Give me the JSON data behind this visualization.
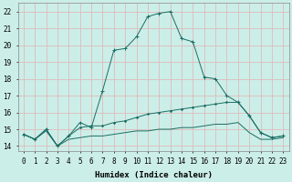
{
  "xlabel": "Humidex (Indice chaleur)",
  "bg_color": "#cceee8",
  "grid_color": "#ddbbbb",
  "line_color": "#1a6e64",
  "xlim": [
    -0.5,
    23.5
  ],
  "ylim": [
    13.7,
    22.5
  ],
  "xticks": [
    0,
    1,
    2,
    3,
    4,
    5,
    6,
    7,
    8,
    9,
    10,
    11,
    12,
    13,
    14,
    15,
    16,
    17,
    18,
    19,
    20,
    21,
    22,
    23
  ],
  "yticks": [
    14,
    15,
    16,
    17,
    18,
    19,
    20,
    21,
    22
  ],
  "line1_x": [
    0,
    1,
    2,
    3,
    4,
    5,
    6,
    7,
    8,
    9,
    10,
    11,
    12,
    13,
    14,
    15,
    16,
    17,
    18,
    19,
    20,
    21,
    22,
    23
  ],
  "line1_y": [
    14.7,
    14.4,
    15.0,
    14.0,
    14.6,
    15.4,
    15.1,
    17.3,
    19.7,
    19.8,
    20.5,
    21.7,
    21.9,
    22.0,
    20.4,
    20.2,
    18.1,
    18.0,
    17.0,
    16.6,
    15.8,
    14.8,
    14.5,
    14.6
  ],
  "line1_markers_x": [
    0,
    1,
    2,
    3,
    4,
    5,
    6,
    7,
    8,
    9,
    10,
    11,
    12,
    13,
    14,
    15,
    16,
    17,
    18,
    19,
    20,
    21,
    22,
    23
  ],
  "line1_markers_y": [
    14.7,
    14.4,
    15.0,
    14.0,
    14.6,
    15.4,
    15.1,
    17.3,
    19.7,
    19.8,
    20.5,
    21.7,
    21.9,
    22.0,
    20.4,
    20.2,
    18.1,
    18.0,
    17.0,
    16.6,
    15.8,
    14.8,
    14.5,
    14.6
  ],
  "line2_x": [
    0,
    1,
    2,
    3,
    4,
    5,
    6,
    7,
    8,
    9,
    10,
    11,
    12,
    13,
    14,
    15,
    16,
    17,
    18,
    19,
    20,
    21,
    22,
    23
  ],
  "line2_y": [
    14.7,
    14.4,
    15.0,
    14.0,
    14.6,
    15.1,
    15.2,
    15.2,
    15.4,
    15.5,
    15.7,
    15.9,
    16.0,
    16.1,
    16.2,
    16.3,
    16.4,
    16.5,
    16.6,
    16.6,
    15.8,
    14.8,
    14.5,
    14.6
  ],
  "line3_x": [
    0,
    1,
    2,
    3,
    4,
    5,
    6,
    7,
    8,
    9,
    10,
    11,
    12,
    13,
    14,
    15,
    16,
    17,
    18,
    19,
    20,
    21,
    22,
    23
  ],
  "line3_y": [
    14.7,
    14.4,
    14.9,
    14.0,
    14.4,
    14.5,
    14.6,
    14.6,
    14.7,
    14.8,
    14.9,
    14.9,
    15.0,
    15.0,
    15.1,
    15.1,
    15.2,
    15.3,
    15.3,
    15.4,
    14.8,
    14.4,
    14.4,
    14.5
  ],
  "tick_fontsize": 5.5,
  "label_fontsize": 6.5
}
